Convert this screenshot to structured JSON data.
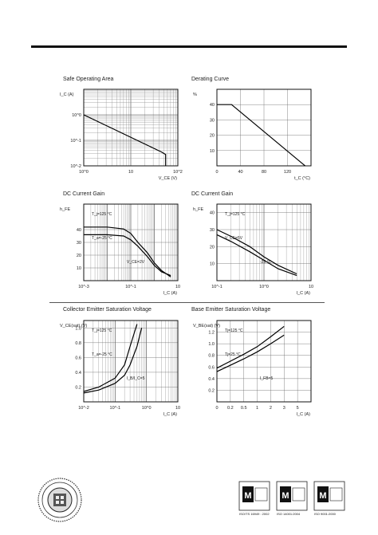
{
  "charts": [
    {
      "title": "Safe Operating Area",
      "type": "line",
      "xscale": "log",
      "yscale": "log",
      "xlim": [
        1,
        100
      ],
      "ylim": [
        0.01,
        10
      ],
      "ylabel": "I_C (A)",
      "xlabel": "V_CE (V)",
      "x_ticks": [
        {
          "v": 1,
          "t": "10^0"
        },
        {
          "v": 10,
          "t": "10"
        },
        {
          "v": 100,
          "t": "10^2"
        }
      ],
      "y_ticks": [
        {
          "v": 1,
          "t": "10^0"
        },
        {
          "v": 0.1,
          "t": "10^-1"
        },
        {
          "v": 0.01,
          "t": "10^-2"
        }
      ],
      "series": [
        {
          "x": [
            1,
            45,
            55,
            55
          ],
          "y": [
            1.0,
            0.035,
            0.028,
            0.01
          ]
        }
      ]
    },
    {
      "title": "Derating Curve",
      "type": "line",
      "xlim": [
        0,
        160
      ],
      "ylim": [
        0,
        50
      ],
      "ylabel": "%",
      "xlabel": "t_C (°C)",
      "x_ticks": [
        {
          "v": 0,
          "t": "0"
        },
        {
          "v": 40,
          "t": "40"
        },
        {
          "v": 80,
          "t": "80"
        },
        {
          "v": 120,
          "t": "120"
        }
      ],
      "y_ticks": [
        {
          "v": 10,
          "t": "10"
        },
        {
          "v": 20,
          "t": "20"
        },
        {
          "v": 30,
          "t": "30"
        },
        {
          "v": 40,
          "t": "40"
        }
      ],
      "series": [
        {
          "x": [
            0,
            25,
            150
          ],
          "y": [
            40,
            40,
            0
          ]
        }
      ]
    },
    {
      "title": "DC Current Gain",
      "type": "line",
      "xscale": "log",
      "xlim": [
        0.001,
        10
      ],
      "ylim": [
        0,
        60
      ],
      "ylabel": "h_FE",
      "xlabel": "I_C (A)",
      "x_ticks": [
        {
          "v": 0.001,
          "t": "10^-3"
        },
        {
          "v": 0.1,
          "t": "10^-1"
        },
        {
          "v": 10,
          "t": "10"
        }
      ],
      "y_ticks": [
        {
          "v": 10,
          "t": "10"
        },
        {
          "v": 20,
          "t": "20"
        },
        {
          "v": 30,
          "t": "30"
        },
        {
          "v": 40,
          "t": "40"
        }
      ],
      "annotations": [
        "T_j=125 °C",
        "T_a=-25 °C",
        "V_CE=2V"
      ],
      "series": [
        {
          "x": [
            0.001,
            0.01,
            0.05,
            0.1,
            0.2,
            0.5,
            1,
            2,
            5
          ],
          "y": [
            42,
            42,
            40.5,
            37,
            30,
            22,
            14,
            8,
            3
          ]
        },
        {
          "x": [
            0.001,
            0.01,
            0.05,
            0.1,
            0.2,
            0.5,
            1,
            2,
            5
          ],
          "y": [
            36,
            36,
            35,
            32,
            27,
            19,
            12,
            7,
            4
          ]
        }
      ]
    },
    {
      "title": "DC Current Gain",
      "type": "line",
      "xscale": "log",
      "xlim": [
        0.1,
        10
      ],
      "ylim": [
        0,
        45
      ],
      "ylabel": "h_FE",
      "xlabel": "I_C (A)",
      "x_ticks": [
        {
          "v": 0.1,
          "t": "10^-1"
        },
        {
          "v": 1,
          "t": "10^0"
        },
        {
          "v": 10,
          "t": "10"
        }
      ],
      "y_ticks": [
        {
          "v": 10,
          "t": "10"
        },
        {
          "v": 20,
          "t": "20"
        },
        {
          "v": 30,
          "t": "30"
        },
        {
          "v": 40,
          "t": "40"
        }
      ],
      "annotations": [
        "T_j=125 °C",
        "V_CE=5V",
        "-25 °C"
      ],
      "series": [
        {
          "x": [
            0.1,
            0.2,
            0.5,
            1,
            2,
            5
          ],
          "y": [
            30,
            26,
            20,
            14,
            9,
            4
          ]
        },
        {
          "x": [
            0.1,
            0.2,
            0.5,
            1,
            2,
            5
          ],
          "y": [
            27,
            23,
            17,
            12,
            7,
            3
          ]
        }
      ]
    },
    {
      "title": "Collector Emitter Saturation Voltage",
      "type": "line",
      "xscale": "log",
      "xlim": [
        0.01,
        10
      ],
      "ylim": [
        0,
        1.1
      ],
      "ylabel": "V_CE(sat) (V)",
      "xlabel": "I_C (A)",
      "x_ticks": [
        {
          "v": 0.01,
          "t": "10^-2"
        },
        {
          "v": 0.1,
          "t": "10^-1"
        },
        {
          "v": 1,
          "t": "10^0"
        },
        {
          "v": 10,
          "t": "10"
        }
      ],
      "y_ticks": [
        {
          "v": 0.2,
          "t": "0.2"
        },
        {
          "v": 0.4,
          "t": "0.4"
        },
        {
          "v": 0.6,
          "t": "0.6"
        },
        {
          "v": 0.8,
          "t": "0.8"
        },
        {
          "v": 1.0,
          "t": "1.0"
        }
      ],
      "annotations": [
        "T_j=125 °C",
        "T_a=-25 °C",
        "I_B/I_C=5"
      ],
      "series": [
        {
          "x": [
            0.01,
            0.03,
            0.1,
            0.2,
            0.3,
            0.5
          ],
          "y": [
            0.14,
            0.2,
            0.32,
            0.5,
            0.75,
            1.05
          ]
        },
        {
          "x": [
            0.01,
            0.03,
            0.1,
            0.2,
            0.3,
            0.5,
            0.7
          ],
          "y": [
            0.12,
            0.16,
            0.25,
            0.36,
            0.5,
            0.75,
            1.0
          ]
        }
      ]
    },
    {
      "title": "Base Emitter Saturation Voltage",
      "type": "line",
      "xlim": [
        0,
        3.5
      ],
      "ylim": [
        0,
        1.4
      ],
      "ylabel": "V_BE(sat) (V)",
      "xlabel": "I_C (A)",
      "x_ticks": [
        {
          "v": 0,
          "t": "0"
        },
        {
          "v": 0.5,
          "t": "0.2"
        },
        {
          "v": 1,
          "t": "0.5"
        },
        {
          "v": 1.5,
          "t": "1"
        },
        {
          "v": 2,
          "t": "2"
        },
        {
          "v": 2.5,
          "t": "3"
        },
        {
          "v": 3,
          "t": "5"
        }
      ],
      "y_ticks": [
        {
          "v": 0.2,
          "t": "0.2"
        },
        {
          "v": 0.4,
          "t": "0.4"
        },
        {
          "v": 0.6,
          "t": "0.6"
        },
        {
          "v": 0.8,
          "t": "0.8"
        },
        {
          "v": 1.0,
          "t": "1.0"
        },
        {
          "v": 1.2,
          "t": "1.2"
        }
      ],
      "annotations": [
        "Tj=125 °C",
        "Tj=25 °C",
        "I_FB=5"
      ],
      "series": [
        {
          "x": [
            0,
            0.5,
            1,
            1.5,
            2,
            2.5
          ],
          "y": [
            0.58,
            0.7,
            0.82,
            0.95,
            1.12,
            1.3
          ]
        },
        {
          "x": [
            0,
            0.5,
            1,
            1.5,
            2,
            2.5
          ],
          "y": [
            0.52,
            0.63,
            0.74,
            0.86,
            1.0,
            1.15
          ]
        }
      ]
    }
  ],
  "certs": [
    {
      "caption": "ISO/TS 16949 : 2002"
    },
    {
      "caption": "ISO 14001:2004"
    },
    {
      "caption": "ISO 9001:2000"
    }
  ]
}
